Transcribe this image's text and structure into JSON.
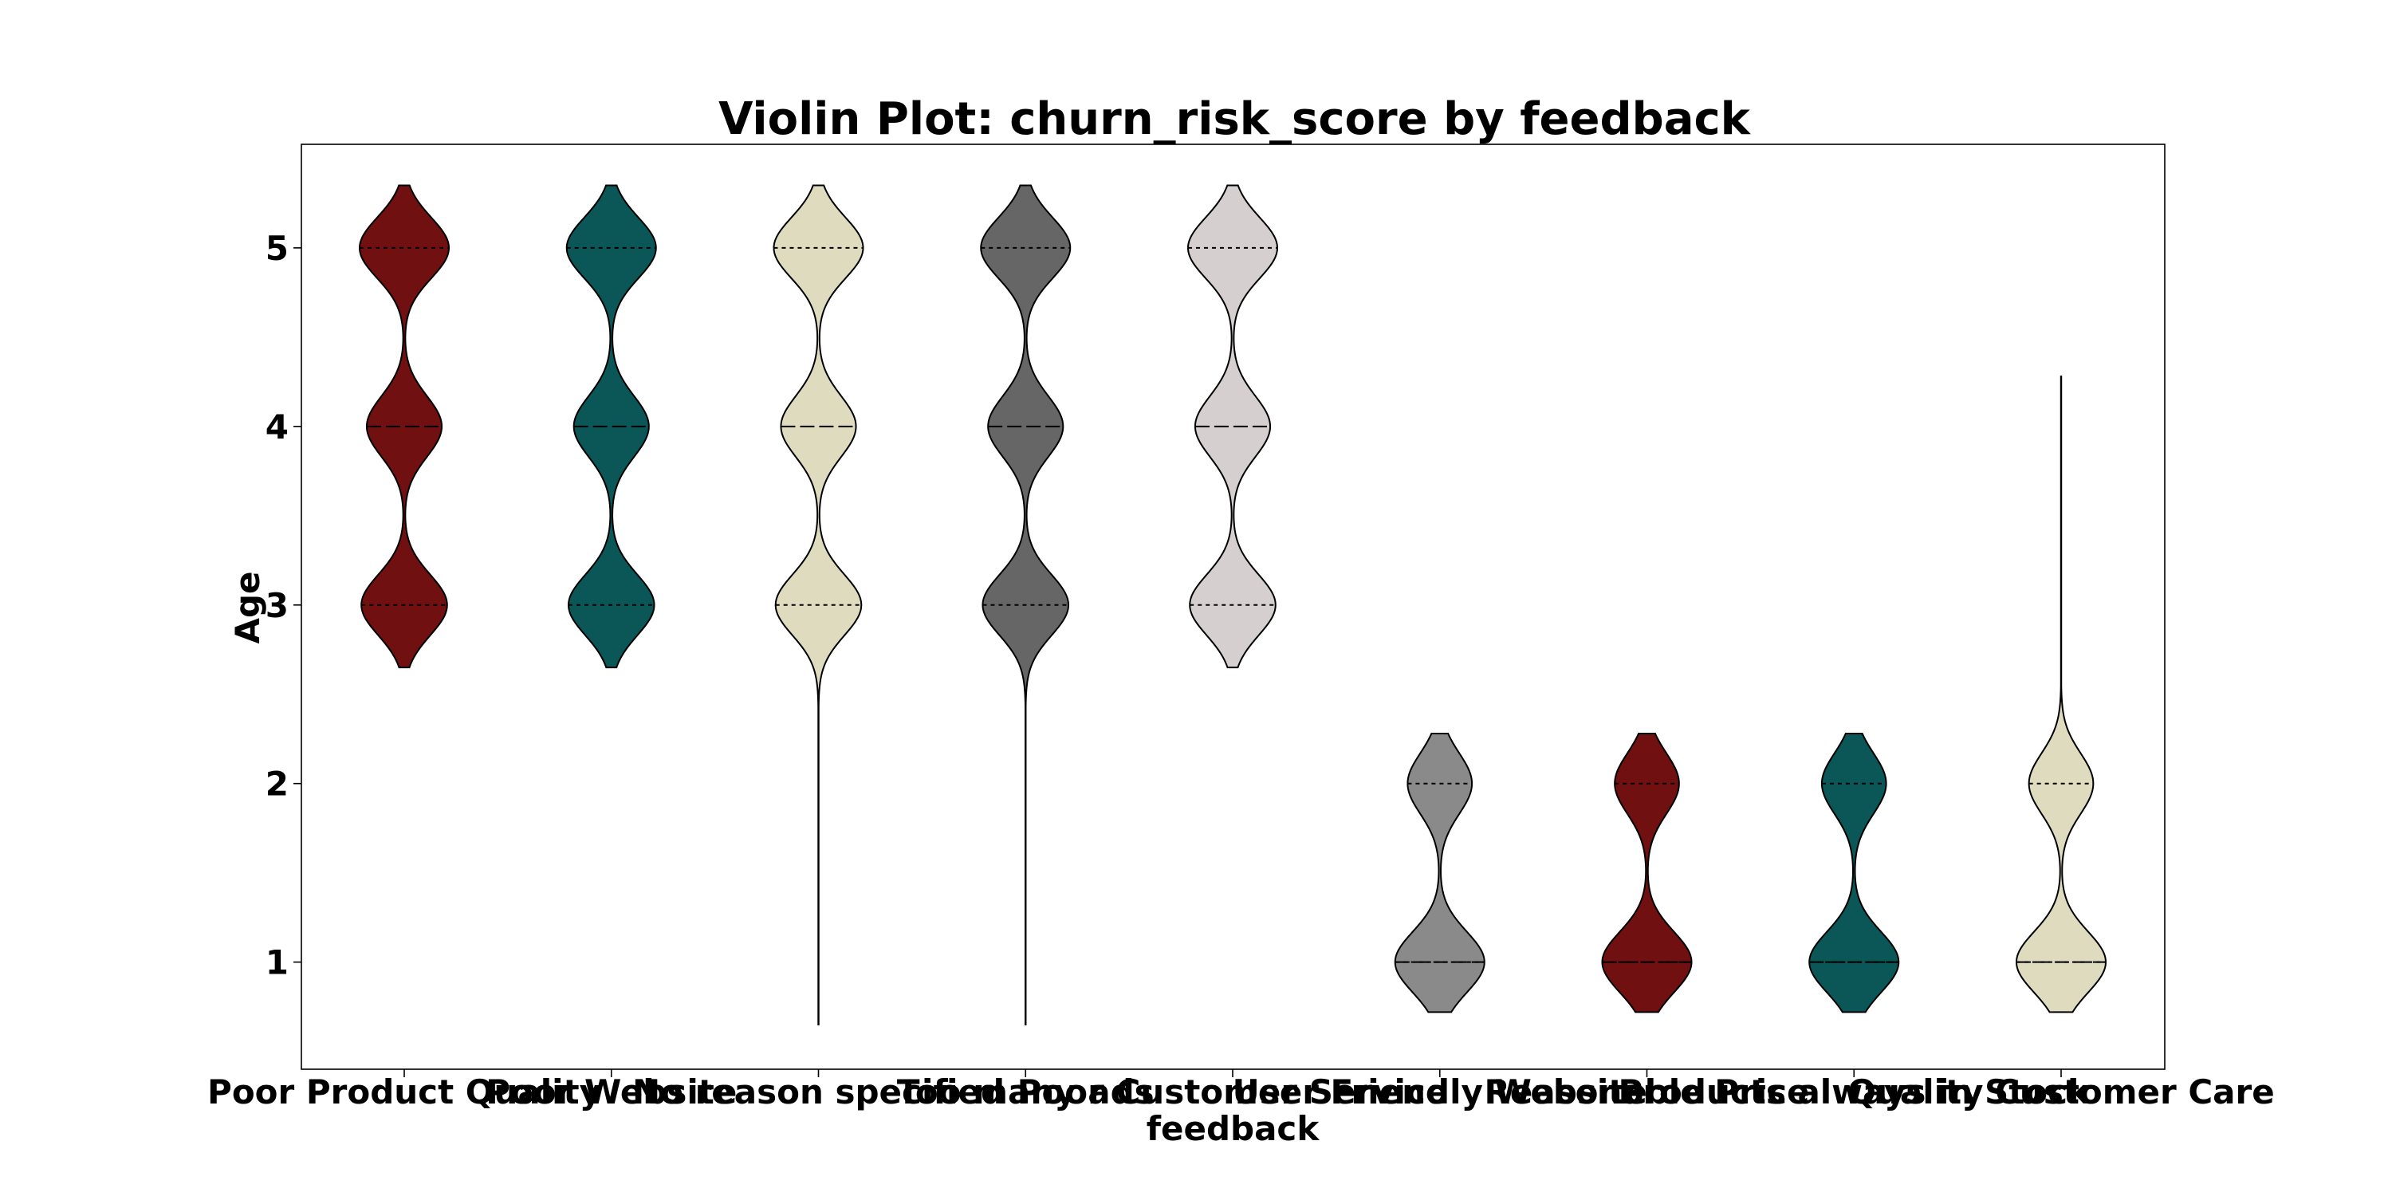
{
  "chart_data": {
    "type": "violin",
    "title": "Violin Plot: churn_risk_score by feedback",
    "xlabel": "feedback",
    "ylabel": "Age",
    "ylim": [
      0.4,
      5.58
    ],
    "yticks": [
      1,
      2,
      3,
      4,
      5
    ],
    "categories": [
      "Poor Product Quality",
      "Poor Website",
      "No reason specified",
      "Too many ads",
      "Poor Customer Service",
      "User Friendly Website",
      "Reasonable Price",
      "Products always in Stock",
      "Quality Customer Care"
    ],
    "violins": [
      {
        "category": "Poor Product Quality",
        "color": "#701010",
        "range": [
          2.65,
          5.35
        ],
        "values": [
          3,
          4,
          5
        ],
        "weights": [
          0.96,
          0.84,
          1.0
        ],
        "quartiles": [
          3,
          4,
          5
        ]
      },
      {
        "category": "Poor Website",
        "color": "#0b5656",
        "range": [
          2.65,
          5.35
        ],
        "values": [
          3,
          4,
          5
        ],
        "weights": [
          0.96,
          0.84,
          1.0
        ],
        "quartiles": [
          3,
          4,
          5
        ]
      },
      {
        "category": "No reason specified",
        "color": "#dedbbf",
        "range": [
          0.65,
          5.35
        ],
        "values": [
          3,
          4,
          5
        ],
        "weights": [
          0.96,
          0.84,
          1.0
        ],
        "quartiles": [
          3,
          4,
          5
        ]
      },
      {
        "category": "Too many ads",
        "color": "#666666",
        "range": [
          0.65,
          5.35
        ],
        "values": [
          3,
          4,
          5
        ],
        "weights": [
          0.96,
          0.84,
          1.0
        ],
        "quartiles": [
          3,
          4,
          5
        ]
      },
      {
        "category": "Poor Customer Service",
        "color": "#d6cfcf",
        "range": [
          2.65,
          5.35
        ],
        "values": [
          3,
          4,
          5
        ],
        "weights": [
          0.96,
          0.84,
          1.0
        ],
        "quartiles": [
          3,
          4,
          5
        ]
      },
      {
        "category": "User Friendly Website",
        "color": "#8a8a8a",
        "range": [
          0.72,
          2.28
        ],
        "values": [
          1,
          2
        ],
        "weights": [
          1.0,
          0.72
        ],
        "quartiles": [
          1,
          1,
          2
        ]
      },
      {
        "category": "Reasonable Price",
        "color": "#701010",
        "range": [
          0.72,
          2.28
        ],
        "values": [
          1,
          2
        ],
        "weights": [
          1.0,
          0.72
        ],
        "quartiles": [
          1,
          1,
          2
        ]
      },
      {
        "category": "Products always in Stock",
        "color": "#0b5656",
        "range": [
          0.72,
          2.28
        ],
        "values": [
          1,
          2
        ],
        "weights": [
          1.0,
          0.72
        ],
        "quartiles": [
          1,
          1,
          2
        ]
      },
      {
        "category": "Quality Customer Care",
        "color": "#dedbbf",
        "range": [
          0.72,
          4.28
        ],
        "values": [
          1,
          2
        ],
        "weights": [
          1.0,
          0.72
        ],
        "quartiles": [
          1,
          1,
          2
        ]
      }
    ],
    "grid": false,
    "legend": "none"
  }
}
